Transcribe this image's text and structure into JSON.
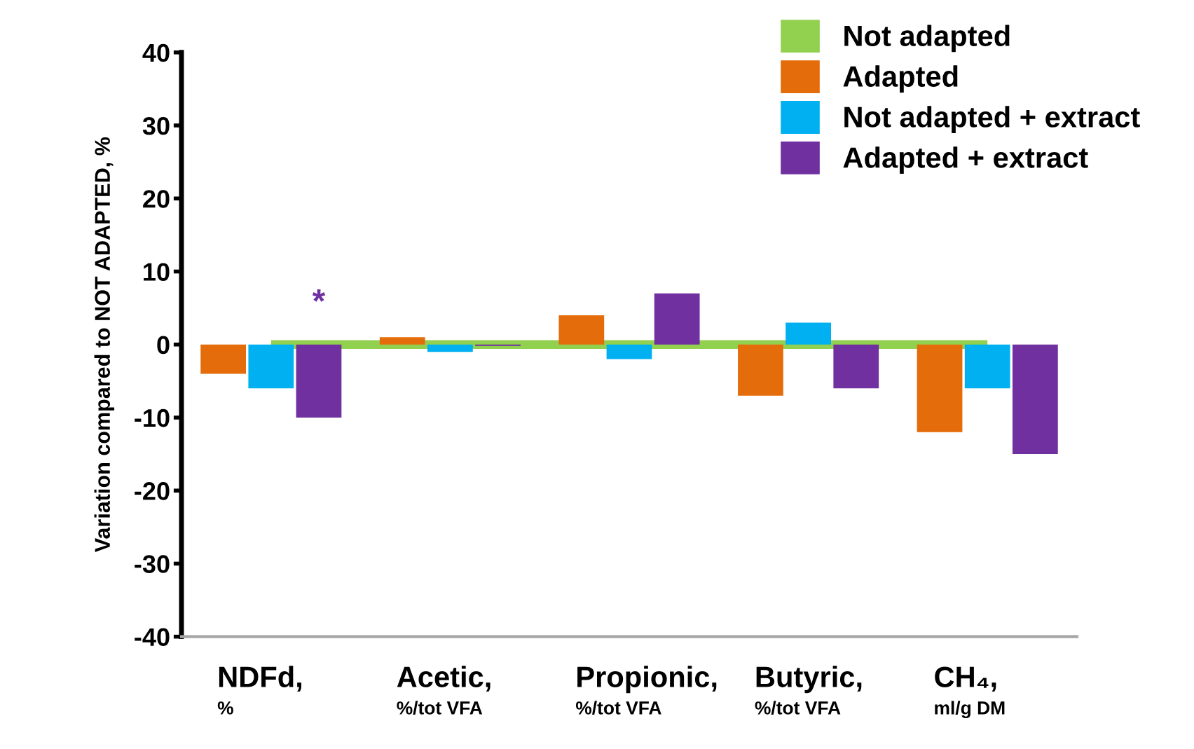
{
  "chart_data": {
    "type": "bar",
    "categories": [
      "NDFd,\n%",
      "Acetic,\n%/tot VFA",
      "Propionic,\n%/tot VFA",
      "Butyric,\n%/tot VFA",
      "CH₄,\nml/g DM"
    ],
    "ylabel": "Variation compared to NOT ADAPTED, %",
    "series": [
      {
        "name": "Not adapted",
        "type": "line",
        "color": "#92d050",
        "values": [
          0,
          0,
          0,
          0,
          0
        ]
      },
      {
        "name": "Adapted",
        "color": "#e46c0a",
        "values": [
          -4,
          1,
          4,
          -7,
          -12
        ]
      },
      {
        "name": "Not adapted + extract",
        "color": "#00b0f0",
        "values": [
          -6,
          -1,
          -2,
          3,
          -6
        ]
      },
      {
        "name": "Adapted + extract",
        "color": "#7030a0",
        "values": [
          -10,
          -0.2,
          7,
          -6,
          -15
        ]
      }
    ],
    "annotations": [
      "*"
    ],
    "ylim": [
      -40,
      40
    ],
    "yticks": [
      -40,
      -30,
      -20,
      -10,
      0,
      10,
      20,
      30,
      40
    ],
    "grid": false,
    "legend": "top right"
  }
}
